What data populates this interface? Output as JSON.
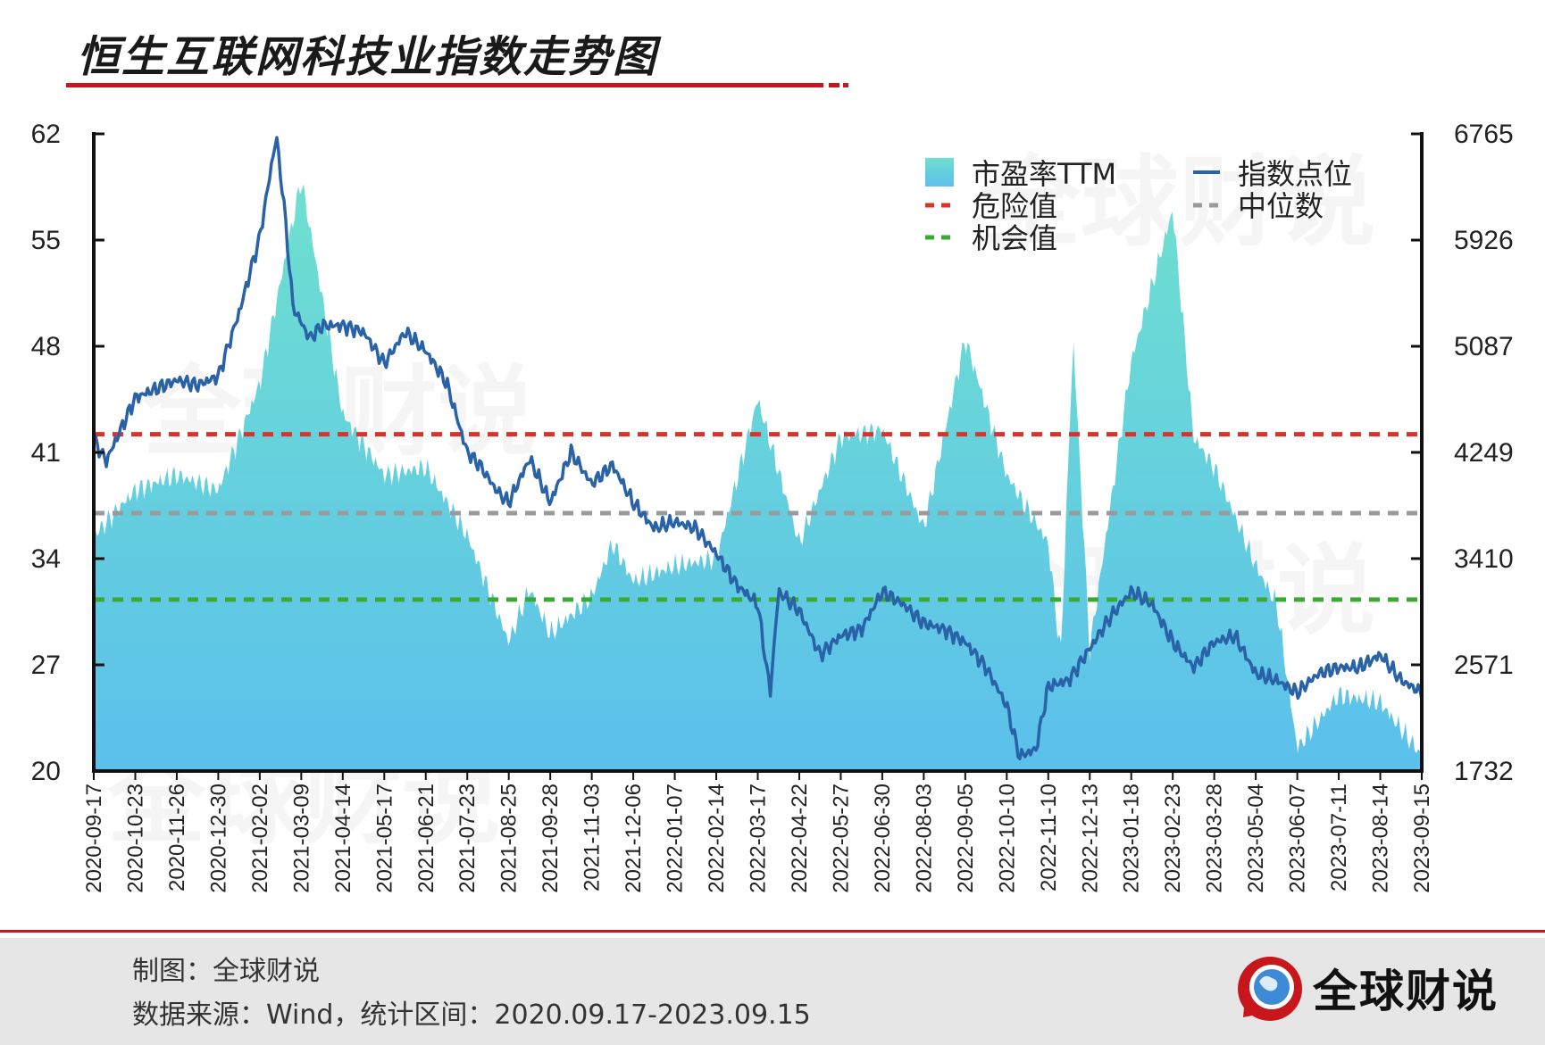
{
  "title": "恒生互联网科技业指数走势图",
  "colors": {
    "pe_fill_top": "#6fe0cf",
    "pe_fill_bottom": "#5bc0ec",
    "index_line": "#2a62a8",
    "danger": "#d9342b",
    "median": "#9a9a9a",
    "opportunity": "#3aaa35",
    "accent_red": "#c8161d",
    "footer_bg": "#e6e6e6"
  },
  "legend": {
    "pe": "市盈率TTM",
    "index": "指数点位",
    "danger": "危险值",
    "median": "中位数",
    "opportunity": "机会值"
  },
  "watermark": "全球财说",
  "footer": {
    "maker": "制图：全球财说",
    "source": "数据来源：Wind，统计区间：2020.09.17-2023.09.15",
    "brand": "全球财说",
    "logo_icon": "globe-logo-icon"
  },
  "chart_data": {
    "type": "area+line",
    "x_ticks": [
      "2020-09-17",
      "2020-10-23",
      "2020-11-26",
      "2020-12-30",
      "2021-02-02",
      "2021-03-09",
      "2021-04-14",
      "2021-05-17",
      "2021-06-21",
      "2021-07-23",
      "2021-08-25",
      "2021-09-28",
      "2021-11-03",
      "2021-12-06",
      "2022-01-07",
      "2022-02-14",
      "2022-03-17",
      "2022-04-22",
      "2022-05-27",
      "2022-06-30",
      "2022-08-03",
      "2022-09-05",
      "2022-10-10",
      "2022-11-10",
      "2022-12-13",
      "2023-01-18",
      "2023-02-23",
      "2023-03-28",
      "2023-05-04",
      "2023-06-07",
      "2023-07-11",
      "2023-08-14",
      "2023-09-15"
    ],
    "y_left": {
      "label": "市盈率TTM",
      "ticks": [
        20,
        27,
        34,
        41,
        48,
        55,
        62
      ],
      "range": [
        20,
        62
      ]
    },
    "y_right": {
      "label": "指数点位",
      "ticks": [
        1732,
        2571,
        3410,
        4249,
        5087,
        5926,
        6765
      ],
      "range": [
        1732,
        6765
      ]
    },
    "reference_lines": {
      "danger": 42.2,
      "median": 37.0,
      "opportunity": 31.3
    },
    "series": [
      {
        "name": "市盈率TTM",
        "kind": "area",
        "axis": "left",
        "t": [
          0,
          1,
          2,
          3,
          4,
          5,
          6,
          7,
          8,
          9,
          10,
          10.5,
          11,
          12,
          12.5,
          13,
          14,
          15,
          16,
          17,
          18,
          19,
          20,
          21,
          22,
          23,
          23.3,
          23.6,
          24,
          25,
          26,
          26.5,
          27,
          28,
          28.5,
          29,
          30,
          31,
          32
        ],
        "values": [
          35.5,
          38.5,
          39.5,
          38.5,
          45.5,
          59.0,
          43.5,
          39.5,
          40.0,
          35.5,
          28.5,
          32.0,
          29.0,
          31.5,
          35.0,
          32.5,
          33.5,
          34.0,
          44.5,
          35.0,
          42.0,
          42.5,
          36.0,
          48.5,
          39.5,
          35.0,
          27.5,
          48.5,
          28.0,
          47.0,
          57.0,
          42.0,
          40.0,
          33.5,
          31.0,
          21.5,
          25.0,
          24.5,
          21.0
        ]
      },
      {
        "name": "指数点位",
        "kind": "line",
        "axis": "right",
        "t": [
          0,
          0.3,
          1,
          1.5,
          2,
          2.5,
          3,
          3.5,
          4,
          4.4,
          4.6,
          4.8,
          5.2,
          5.5,
          6,
          6.5,
          7,
          7.5,
          8,
          8.5,
          9,
          9.3,
          9.7,
          10,
          10.5,
          11,
          11.5,
          12,
          12.5,
          13,
          13.5,
          14,
          14.5,
          15,
          15.5,
          16,
          16.3,
          16.5,
          17,
          17.5,
          18,
          18.5,
          19,
          19.5,
          20,
          20.5,
          21,
          21.5,
          22,
          22.3,
          22.7,
          23,
          23.5,
          24,
          24.5,
          25,
          25.5,
          26,
          26.5,
          27,
          27.5,
          28,
          28.5,
          29,
          29.5,
          30,
          30.5,
          31,
          31.5,
          32
        ],
        "values": [
          4350,
          4180,
          4680,
          4750,
          4820,
          4780,
          4850,
          5350,
          5950,
          6750,
          6150,
          5400,
          5150,
          5250,
          5250,
          5200,
          4950,
          5200,
          5050,
          4800,
          4250,
          4150,
          3950,
          3850,
          4200,
          3850,
          4250,
          4000,
          4150,
          3850,
          3650,
          3700,
          3650,
          3450,
          3200,
          3050,
          2350,
          3150,
          3000,
          2650,
          2800,
          2850,
          3150,
          3050,
          2900,
          2850,
          2750,
          2550,
          2250,
          1850,
          1900,
          2400,
          2450,
          2700,
          2950,
          3150,
          3050,
          2750,
          2550,
          2750,
          2800,
          2500,
          2450,
          2350,
          2500,
          2550,
          2550,
          2650,
          2450,
          2350
        ]
      }
    ]
  }
}
